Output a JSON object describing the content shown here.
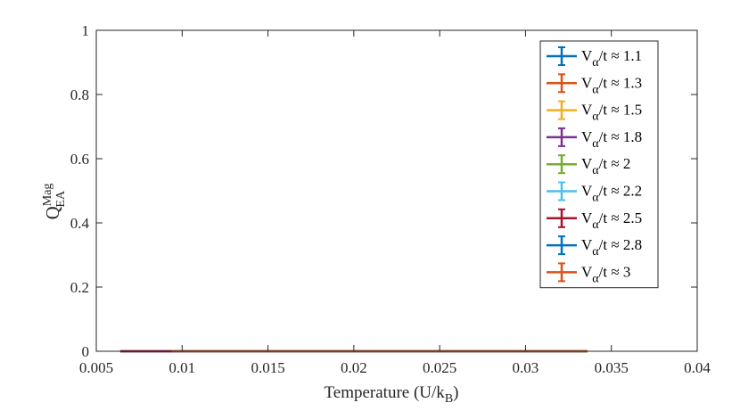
{
  "chart_data": {
    "type": "line",
    "title": "",
    "xlabel": {
      "text": "Temperature (U/k",
      "subscript": "B",
      "suffix": ")"
    },
    "ylabel": {
      "base": "Q",
      "superscript": "Mag",
      "subscript": "EA"
    },
    "xlim": [
      0.005,
      0.04
    ],
    "ylim": [
      0,
      1
    ],
    "xticks": [
      0.005,
      0.01,
      0.015,
      0.02,
      0.025,
      0.03,
      0.035,
      0.04
    ],
    "xtick_labels": [
      "0.005",
      "0.01",
      "0.015",
      "0.02",
      "0.025",
      "0.03",
      "0.035",
      "0.04"
    ],
    "yticks": [
      0,
      0.2,
      0.4,
      0.6,
      0.8,
      1
    ],
    "ytick_labels": [
      "0",
      "0.2",
      "0.4",
      "0.6",
      "0.8",
      "1"
    ],
    "grid": false,
    "legend_position": "top-right",
    "series": [
      {
        "name": {
          "pre": "V",
          "sub": "α",
          "post": "/t ≈ 1.1"
        },
        "color": "#0072BD",
        "x": [
          0.0064,
          0.0336
        ],
        "y": [
          0,
          0
        ]
      },
      {
        "name": {
          "pre": "V",
          "sub": "α",
          "post": "/t ≈ 1.3"
        },
        "color": "#D95319",
        "x": [
          0.0064,
          0.0336
        ],
        "y": [
          0,
          0
        ]
      },
      {
        "name": {
          "pre": "V",
          "sub": "α",
          "post": "/t ≈ 1.5"
        },
        "color": "#EDB120",
        "x": [
          0.0064,
          0.0336
        ],
        "y": [
          0,
          0
        ]
      },
      {
        "name": {
          "pre": "V",
          "sub": "α",
          "post": "/t ≈ 1.8"
        },
        "color": "#7E2F8E",
        "x": [
          0.0064,
          0.0336
        ],
        "y": [
          0,
          0
        ]
      },
      {
        "name": {
          "pre": "V",
          "sub": "α",
          "post": "/t ≈ 2"
        },
        "color": "#77AC30",
        "x": [
          0.0064,
          0.0336
        ],
        "y": [
          0,
          0
        ]
      },
      {
        "name": {
          "pre": "V",
          "sub": "α",
          "post": "/t ≈ 2.2"
        },
        "color": "#4DBEEE",
        "x": [
          0.0064,
          0.0336
        ],
        "y": [
          0,
          0
        ]
      },
      {
        "name": {
          "pre": "V",
          "sub": "α",
          "post": "/t ≈ 2.5"
        },
        "color": "#A2142F",
        "x": [
          0.0064,
          0.0094
        ],
        "y": [
          0,
          0
        ]
      },
      {
        "name": {
          "pre": "V",
          "sub": "α",
          "post": "/t ≈ 2.8"
        },
        "color": "#0072BD",
        "x": [
          0.0094,
          0.0336
        ],
        "y": [
          0,
          0
        ]
      },
      {
        "name": {
          "pre": "V",
          "sub": "α",
          "post": "/t ≈ 3"
        },
        "color": "#D95319",
        "x": [
          0.0094,
          0.0336
        ],
        "y": [
          0,
          0
        ]
      }
    ]
  }
}
